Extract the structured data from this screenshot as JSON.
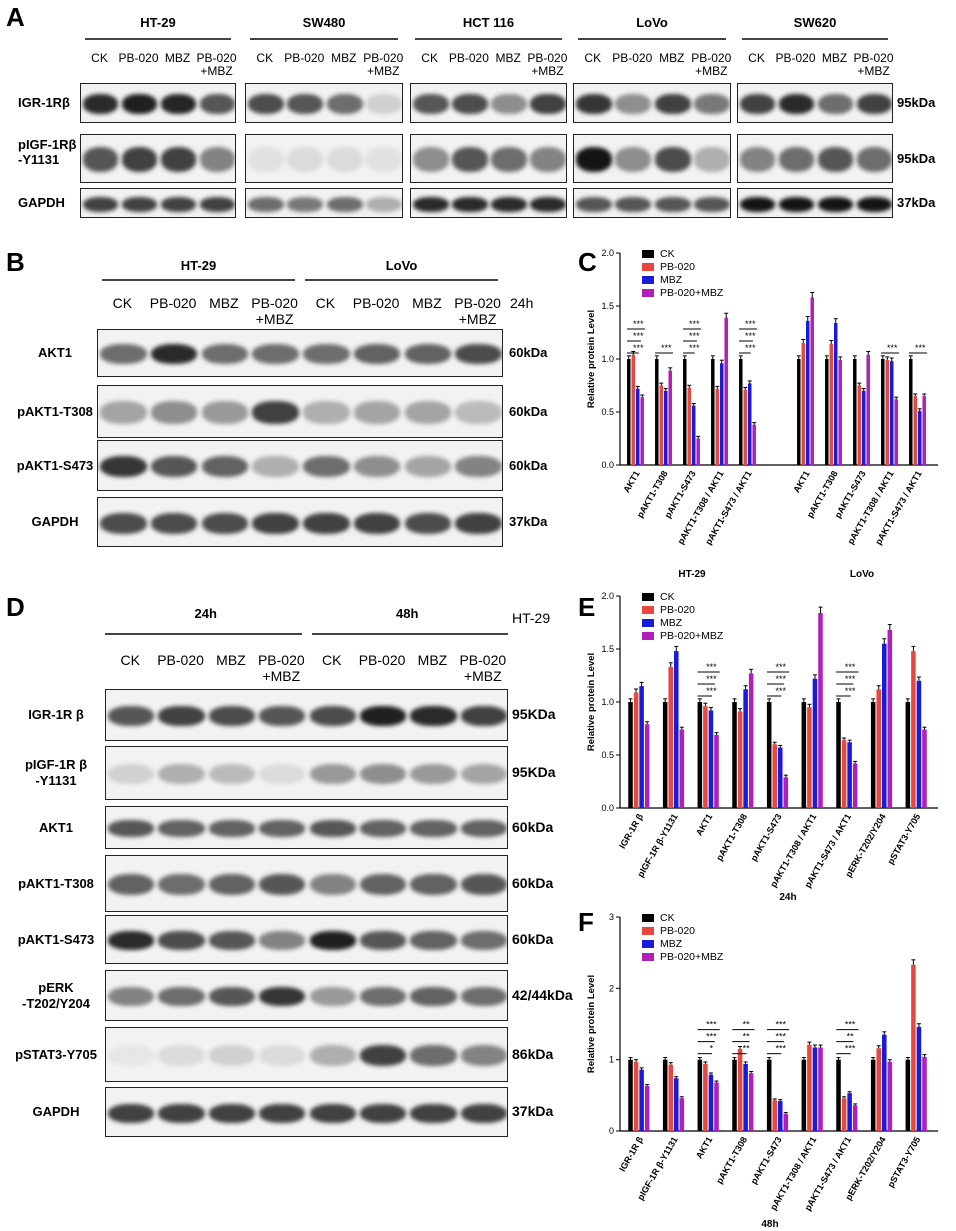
{
  "panels": {
    "A": "A",
    "B": "B",
    "C": "C",
    "D": "D",
    "E": "E",
    "F": "F"
  },
  "panelA": {
    "cell_lines": [
      "HT-29",
      "SW480",
      "HCT 116",
      "LoVo",
      "SW620"
    ],
    "lanes": [
      "CK",
      "PB-020",
      "MBZ",
      "PB-020\n+MBZ"
    ],
    "rows": [
      {
        "label": "IGR-1Rβ",
        "kda": "95kDa",
        "intensity": [
          [
            0.9,
            0.95,
            0.92,
            0.7
          ],
          [
            0.75,
            0.7,
            0.6,
            0.15
          ],
          [
            0.7,
            0.75,
            0.45,
            0.8
          ],
          [
            0.85,
            0.45,
            0.8,
            0.55
          ],
          [
            0.8,
            0.9,
            0.6,
            0.8
          ]
        ]
      },
      {
        "label": "pIGF-1Rβ\n-Y1131",
        "kda": "95kDa",
        "intensity": [
          [
            0.7,
            0.8,
            0.8,
            0.5
          ],
          [
            0.08,
            0.1,
            0.1,
            0.08
          ],
          [
            0.45,
            0.7,
            0.6,
            0.5
          ],
          [
            1.0,
            0.45,
            0.75,
            0.3
          ],
          [
            0.5,
            0.6,
            0.7,
            0.6
          ]
        ]
      },
      {
        "label": "GAPDH",
        "kda": "37kDa",
        "intensity": [
          [
            0.8,
            0.8,
            0.8,
            0.8
          ],
          [
            0.6,
            0.55,
            0.6,
            0.3
          ],
          [
            0.9,
            0.9,
            0.9,
            0.9
          ],
          [
            0.7,
            0.7,
            0.7,
            0.7
          ],
          [
            1.0,
            1.0,
            1.0,
            1.0
          ]
        ]
      }
    ]
  },
  "panelB": {
    "groups": [
      "HT-29",
      "LoVo"
    ],
    "lanes": [
      "CK",
      "PB-020",
      "MBZ",
      "PB-020\n+MBZ",
      "CK",
      "PB-020",
      "MBZ",
      "PB-020\n+MBZ"
    ],
    "timepoint": "24h",
    "rows": [
      {
        "label": "AKT1",
        "kda": "60kDa",
        "intensity": [
          0.6,
          0.9,
          0.6,
          0.6,
          0.6,
          0.65,
          0.65,
          0.75
        ]
      },
      {
        "label": "pAKT1-T308",
        "kda": "60kDa",
        "intensity": [
          0.35,
          0.45,
          0.4,
          0.8,
          0.3,
          0.35,
          0.35,
          0.25
        ]
      },
      {
        "label": "pAKT1-S473",
        "kda": "60kDa",
        "intensity": [
          0.85,
          0.7,
          0.65,
          0.3,
          0.6,
          0.45,
          0.35,
          0.5
        ]
      },
      {
        "label": "GAPDH",
        "kda": "37kDa",
        "intensity": [
          0.75,
          0.75,
          0.75,
          0.8,
          0.8,
          0.8,
          0.75,
          0.8
        ]
      }
    ]
  },
  "panelD": {
    "timepoints": [
      "24h",
      "48h"
    ],
    "cell_line": "HT-29",
    "lanes": [
      "CK",
      "PB-020",
      "MBZ",
      "PB-020\n+MBZ",
      "CK",
      "PB-020",
      "MBZ",
      "PB-020\n+MBZ"
    ],
    "rows": [
      {
        "label": "IGR-1R β",
        "kda": "95KDa",
        "intensity": [
          0.7,
          0.8,
          0.75,
          0.7,
          0.75,
          0.95,
          0.9,
          0.8
        ]
      },
      {
        "label": "pIGF-1R β\n-Y1131",
        "kda": "95KDa",
        "intensity": [
          0.15,
          0.3,
          0.25,
          0.1,
          0.4,
          0.45,
          0.4,
          0.35
        ]
      },
      {
        "label": "AKT1",
        "kda": "60kDa",
        "intensity": [
          0.7,
          0.65,
          0.65,
          0.65,
          0.7,
          0.65,
          0.65,
          0.65
        ]
      },
      {
        "label": "pAKT1-T308",
        "kda": "60kDa",
        "intensity": [
          0.65,
          0.6,
          0.65,
          0.7,
          0.5,
          0.65,
          0.65,
          0.7
        ]
      },
      {
        "label": "pAKT1-S473",
        "kda": "60kDa",
        "intensity": [
          0.9,
          0.75,
          0.7,
          0.5,
          0.95,
          0.7,
          0.65,
          0.6
        ]
      },
      {
        "label": "pERK\n-T202/Y204",
        "kda": "42/44kDa",
        "intensity": [
          0.5,
          0.6,
          0.7,
          0.85,
          0.4,
          0.6,
          0.65,
          0.6
        ]
      },
      {
        "label": "pSTAT3-Y705",
        "kda": "86kDa",
        "intensity": [
          0.05,
          0.1,
          0.15,
          0.1,
          0.3,
          0.8,
          0.6,
          0.5
        ]
      },
      {
        "label": "GAPDH",
        "kda": "37kDa",
        "intensity": [
          0.8,
          0.8,
          0.8,
          0.8,
          0.8,
          0.8,
          0.8,
          0.8
        ]
      }
    ]
  },
  "legend": [
    "CK",
    "PB-020",
    "MBZ",
    "PB-020+MBZ"
  ],
  "colors": {
    "CK": "#000000",
    "PB-020": "#e8473f",
    "MBZ": "#1a1ad9",
    "PB-020+MBZ": "#b21fb8"
  },
  "chart_data": [
    {
      "id": "C",
      "type": "bar",
      "ylabel": "Relative protein Level",
      "ylim": [
        0,
        2.0
      ],
      "yticks": [
        "0.0",
        "0.5",
        "1.0",
        "1.5",
        "2.0"
      ],
      "groups": [
        {
          "name": "HT-29",
          "categories": [
            "AKT1",
            "pAKT1-T308",
            "pAKT1-S473",
            "pAKT1-T308 / AKT1",
            "pAKT1-S473 / AKT1"
          ],
          "series": [
            {
              "name": "CK",
              "values": [
                1.0,
                1.0,
                1.0,
                1.0,
                1.0
              ]
            },
            {
              "name": "PB-020",
              "values": [
                1.04,
                0.75,
                0.73,
                0.72,
                0.71
              ]
            },
            {
              "name": "MBZ",
              "values": [
                0.72,
                0.7,
                0.56,
                0.96,
                0.77
              ]
            },
            {
              "name": "PB-020+MBZ",
              "values": [
                0.64,
                0.89,
                0.25,
                1.39,
                0.38
              ]
            }
          ]
        },
        {
          "name": "LoVo",
          "categories": [
            "AKT1",
            "pAKT1-T308",
            "pAKT1-S473",
            "pAKT1-T308 / AKT1",
            "pAKT1-S473 / AKT1"
          ],
          "series": [
            {
              "name": "CK",
              "values": [
                1.0,
                1.0,
                1.0,
                1.0,
                1.0
              ]
            },
            {
              "name": "PB-020",
              "values": [
                1.15,
                1.14,
                0.75,
                0.99,
                0.65
              ]
            },
            {
              "name": "MBZ",
              "values": [
                1.36,
                1.34,
                0.7,
                0.98,
                0.51
              ]
            },
            {
              "name": "PB-020+MBZ",
              "values": [
                1.58,
                0.99,
                1.04,
                0.62,
                0.65
              ]
            }
          ]
        }
      ],
      "sig": [
        [
          "***",
          "***",
          "***"
        ],
        [
          "***"
        ],
        [
          "***",
          "***",
          "***"
        ],
        [],
        [
          "***",
          "***",
          "***"
        ],
        [],
        [],
        [],
        [
          "***"
        ],
        [
          "***"
        ]
      ]
    },
    {
      "id": "E",
      "type": "bar",
      "xlabel": "24h",
      "ylabel": "Relative protein Level",
      "ylim": [
        0,
        2.0
      ],
      "yticks": [
        "0.0",
        "0.5",
        "1.0",
        "1.5",
        "2.0"
      ],
      "categories": [
        "IGR-1R β",
        "pIGF-1R β-Y1131",
        "AKT1",
        "pAKT1-T308",
        "pAKT1-S473",
        "pAKT1-T308 / AKT1",
        "pAKT1-S473 / AKT1",
        "pERK-T202/Y204",
        "pSTAT3-Y705"
      ],
      "series": [
        {
          "name": "CK",
          "values": [
            1.0,
            1.0,
            1.0,
            1.0,
            1.0,
            1.0,
            1.0,
            1.0,
            1.0
          ]
        },
        {
          "name": "PB-020",
          "values": [
            1.09,
            1.33,
            0.96,
            0.91,
            0.6,
            0.95,
            0.64,
            1.12,
            1.48
          ]
        },
        {
          "name": "MBZ",
          "values": [
            1.15,
            1.48,
            0.92,
            1.12,
            0.57,
            1.22,
            0.62,
            1.55,
            1.2
          ]
        },
        {
          "name": "PB-020+MBZ",
          "values": [
            0.79,
            0.74,
            0.69,
            1.27,
            0.29,
            1.84,
            0.42,
            1.68,
            0.74
          ]
        }
      ],
      "sig": [
        [],
        [],
        [
          "***",
          "***",
          "***"
        ],
        [],
        [
          "***",
          "***",
          "***"
        ],
        [],
        [
          "***",
          "***",
          "***"
        ],
        [],
        []
      ]
    },
    {
      "id": "F",
      "type": "bar",
      "xlabel": "48h",
      "ylabel": "Relative protein Level",
      "ylim": [
        0,
        3
      ],
      "yticks": [
        "0",
        "1",
        "2",
        "3"
      ],
      "categories": [
        "IGR-1R β",
        "pIGF-1R β-Y1131",
        "AKT1",
        "pAKT1-T308",
        "pAKT1-S473",
        "pAKT1-T308 / AKT1",
        "pAKT1-S473 / AKT1",
        "pERK-T202/Y204",
        "pSTAT3-Y705"
      ],
      "series": [
        {
          "name": "CK",
          "values": [
            1.0,
            1.0,
            1.0,
            1.0,
            1.0,
            1.0,
            1.0,
            1.0,
            1.0
          ]
        },
        {
          "name": "PB-020",
          "values": [
            0.97,
            0.93,
            0.94,
            1.15,
            0.43,
            1.21,
            0.46,
            1.16,
            2.33
          ]
        },
        {
          "name": "MBZ",
          "values": [
            0.86,
            0.74,
            0.79,
            0.94,
            0.42,
            1.17,
            0.53,
            1.35,
            1.46
          ]
        },
        {
          "name": "PB-020+MBZ",
          "values": [
            0.63,
            0.46,
            0.68,
            0.81,
            0.24,
            1.17,
            0.36,
            0.97,
            1.04
          ]
        }
      ],
      "sig": [
        [],
        [],
        [
          "***",
          "***",
          "*"
        ],
        [
          "**",
          "**",
          "**"
        ],
        [
          "***",
          "***",
          "***"
        ],
        [],
        [
          "***",
          "**",
          "***"
        ],
        [],
        []
      ]
    }
  ]
}
